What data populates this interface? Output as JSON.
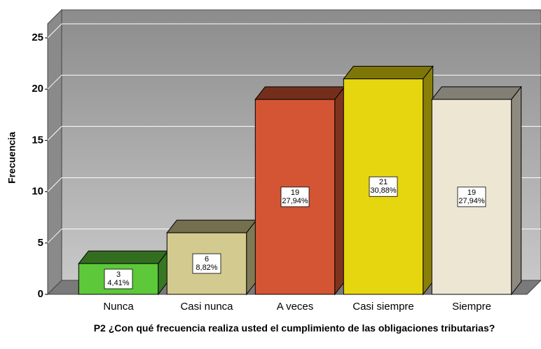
{
  "chart_data": {
    "type": "bar3d",
    "ylabel": "Frecuencia",
    "xlabel": "P2 ¿Con qué frecuencia realiza usted el cumplimiento de las obligaciones tributarias?",
    "categories": [
      "Nunca",
      "Casi nunca",
      "A veces",
      "Casi siempre",
      "Siempre"
    ],
    "values": [
      3,
      6,
      19,
      21,
      19
    ],
    "percents": [
      4.41,
      8.82,
      27.94,
      30.88,
      27.94
    ],
    "percent_labels": [
      "4,41%",
      "8,82%",
      "27,94%",
      "30,88%",
      "27,94%"
    ],
    "colors": [
      "#5dc83a",
      "#d3ca8f",
      "#d35533",
      "#e6d60f",
      "#ede6d3"
    ],
    "ylim": [
      0,
      26.4
    ],
    "yticks": [
      0,
      5,
      10,
      15,
      20,
      25
    ],
    "grid": true
  }
}
